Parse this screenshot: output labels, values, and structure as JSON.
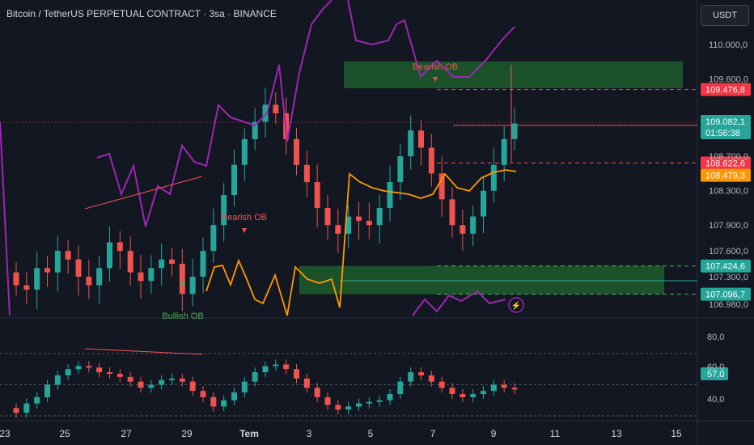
{
  "header": {
    "title": "Bitcoin / TetherUS PERPETUAL CONTRACT · 3sa · BINANCE",
    "currency": "USDT"
  },
  "price_scale": [
    "110.000,0",
    "109.600,0",
    "108.700,0",
    "108.300,0",
    "107.900,0",
    "107.600,0",
    "107.300,0",
    "106.980,0"
  ],
  "time_axis": [
    "23",
    "25",
    "27",
    "29",
    "Tem",
    "3",
    "5",
    "7",
    "9",
    "11",
    "13",
    "15"
  ],
  "price_tags": {
    "ob_top": "109.476,8",
    "last_price": "109.082,1",
    "countdown": "01:56:38",
    "ob_mid": "108.622,6",
    "ema": "108.479,3",
    "bull_ob_top": "107.424,6",
    "bull_ob_bottom": "107.096,7"
  },
  "labels": {
    "bearish_ob_1": "Bearish OB",
    "bearish_ob_2": "Bearish OB",
    "bullish_ob": "Bullish OB"
  },
  "indicator": {
    "levels": [
      "80,0",
      "60,0",
      "40,0"
    ],
    "value": "57,0"
  },
  "colors": {
    "up": "#26a69a",
    "down": "#ef5350",
    "ema": "#ff9800",
    "purple": "#9c27b0",
    "ob_green": "#1e5d2c",
    "ob_red": "#f23645"
  },
  "chart_data": {
    "type": "candlestick",
    "price_axis_ticks": [
      110000,
      109600,
      108700,
      108300,
      107900,
      107600,
      107300,
      106980
    ],
    "x_axis_ticks": [
      "23",
      "25",
      "27",
      "29",
      "Tem",
      "3",
      "5",
      "7",
      "9",
      "11",
      "13",
      "15"
    ],
    "candles_close_approx": [
      107200,
      107150,
      107400,
      107350,
      107600,
      107500,
      107300,
      107200,
      107400,
      107700,
      107600,
      107350,
      107250,
      107400,
      107500,
      107450,
      107100,
      107300,
      107600,
      107900,
      108250,
      108600,
      108900,
      109100,
      109300,
      109200,
      108900,
      108600,
      108400,
      108100,
      107900,
      107800,
      108000,
      107950,
      107900,
      108100,
      108400,
      108700,
      109000,
      108800,
      108500,
      108200,
      107900,
      107800,
      108000,
      108300,
      108600,
      108900,
      109082
    ],
    "order_blocks": [
      {
        "type": "bearish",
        "top": 109900,
        "bottom": 109476.8
      },
      {
        "type": "bullish",
        "top": 107424.6,
        "bottom": 107096.7
      }
    ],
    "levels": {
      "last_price": 109082.1,
      "ob_mid": 108622.6,
      "ema": 108479.3
    },
    "oscillator": {
      "upper": 80,
      "middle": 60,
      "lower": 40,
      "value": 57
    }
  }
}
